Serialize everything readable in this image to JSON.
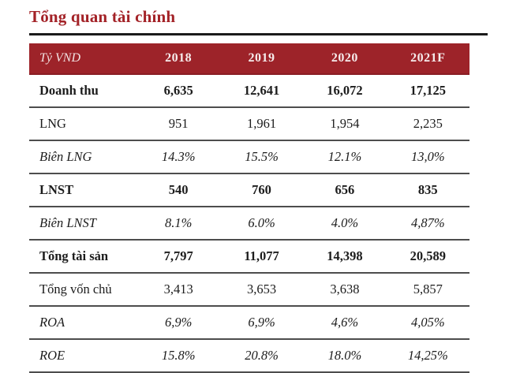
{
  "page": {
    "title": "Tổng quan tài chính"
  },
  "colors": {
    "title_red": "#a32227",
    "header_background_red": "#9d2329",
    "header_text": "#f2e3e3",
    "title_rule_black": "#1b1b1b",
    "row_separator_gray": "#4d4d4d",
    "body_text": "#1c1c1c"
  },
  "table": {
    "header": {
      "unit_label": "Tỷ VND",
      "years": [
        "2018",
        "2019",
        "2020",
        "2021F"
      ]
    },
    "rows": [
      {
        "label": "Doanh thu",
        "style": "bold",
        "values": [
          "6,635",
          "12,641",
          "16,072",
          "17,125"
        ]
      },
      {
        "label": "LNG",
        "style": "regular",
        "values": [
          "951",
          "1,961",
          "1,954",
          "2,235"
        ]
      },
      {
        "label": "Biên LNG",
        "style": "italic",
        "values": [
          "14.3%",
          "15.5%",
          "12.1%",
          "13,0%"
        ]
      },
      {
        "label": "LNST",
        "style": "bold",
        "values": [
          "540",
          "760",
          "656",
          "835"
        ]
      },
      {
        "label": "Biên LNST",
        "style": "italic",
        "values": [
          "8.1%",
          "6.0%",
          "4.0%",
          "4,87%"
        ]
      },
      {
        "label": "Tổng tài sản",
        "style": "bold",
        "values": [
          "7,797",
          "11,077",
          "14,398",
          "20,589"
        ]
      },
      {
        "label": "Tổng vốn chủ",
        "style": "regular",
        "values": [
          "3,413",
          "3,653",
          "3,638",
          "5,857"
        ]
      },
      {
        "label": "ROA",
        "style": "italic",
        "values": [
          "6,9%",
          "6,9%",
          "4,6%",
          "4,05%"
        ]
      },
      {
        "label": "ROE",
        "style": "italic",
        "values": [
          "15.8%",
          "20.8%",
          "18.0%",
          "14,25%"
        ]
      }
    ]
  }
}
